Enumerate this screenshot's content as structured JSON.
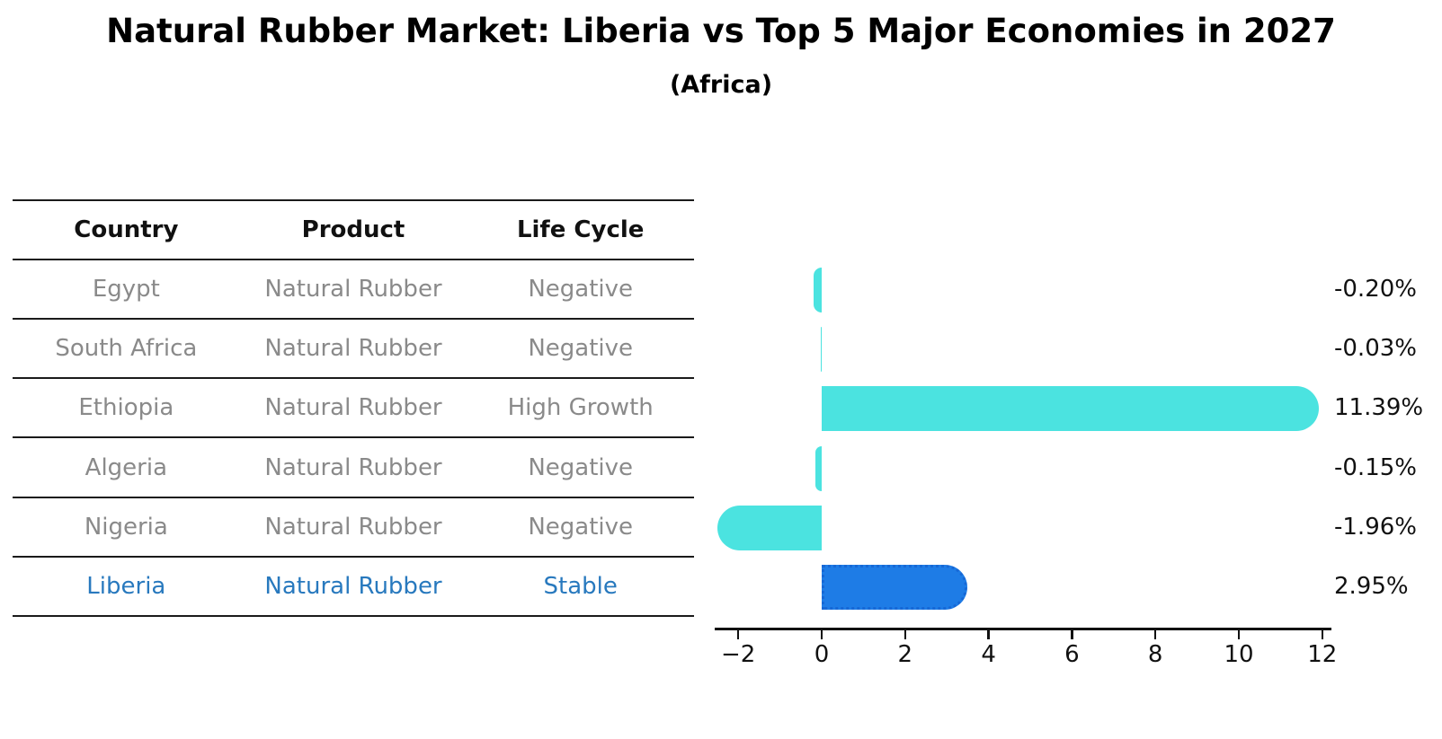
{
  "header": {
    "title": "Natural Rubber Market: Liberia vs Top 5 Major Economies in 2027",
    "subtitle": "(Africa)"
  },
  "table": {
    "columns": [
      "Country",
      "Product",
      "Life Cycle"
    ],
    "rows": [
      {
        "country": "Egypt",
        "product": "Natural Rubber",
        "life_cycle": "Negative",
        "highlight": false
      },
      {
        "country": "South Africa",
        "product": "Natural Rubber",
        "life_cycle": "Negative",
        "highlight": false
      },
      {
        "country": "Ethiopia",
        "product": "Natural Rubber",
        "life_cycle": "High Growth",
        "highlight": false
      },
      {
        "country": "Algeria",
        "product": "Natural Rubber",
        "life_cycle": "Negative",
        "highlight": false
      },
      {
        "country": "Nigeria",
        "product": "Natural Rubber",
        "life_cycle": "Negative",
        "highlight": false
      },
      {
        "country": "Liberia",
        "product": "Natural Rubber",
        "life_cycle": "Stable",
        "highlight": true
      }
    ]
  },
  "chart_data": {
    "type": "bar",
    "orientation": "horizontal",
    "title": "Natural Rubber Market: Liberia vs Top 5 Major Economies in 2027",
    "subtitle": "(Africa)",
    "categories": [
      "Egypt",
      "South Africa",
      "Ethiopia",
      "Algeria",
      "Nigeria",
      "Liberia"
    ],
    "values": [
      -0.2,
      -0.03,
      11.39,
      -0.15,
      -1.96,
      2.95
    ],
    "value_labels": [
      "-0.20%",
      "-0.03%",
      "11.39%",
      "-0.15%",
      "-1.96%",
      "2.95%"
    ],
    "unit": "%",
    "x_ticks": [
      -2,
      0,
      2,
      4,
      6,
      8,
      10,
      12
    ],
    "x_tick_labels": [
      "−2",
      "0",
      "2",
      "4",
      "6",
      "8",
      "10",
      "12"
    ],
    "xlim": [
      -2.6,
      12.2
    ],
    "grid": false,
    "legend": "none",
    "highlight_index": 5,
    "colors": {
      "bar": "#4BE3E0",
      "highlight_bar": "#1E7CE6",
      "highlight_border": "#1668D6",
      "highlight_text": "#2879BE",
      "row_text": "#8A8A8A",
      "header_text": "#111111",
      "axis": "#111111",
      "value_label": "#111111"
    }
  }
}
